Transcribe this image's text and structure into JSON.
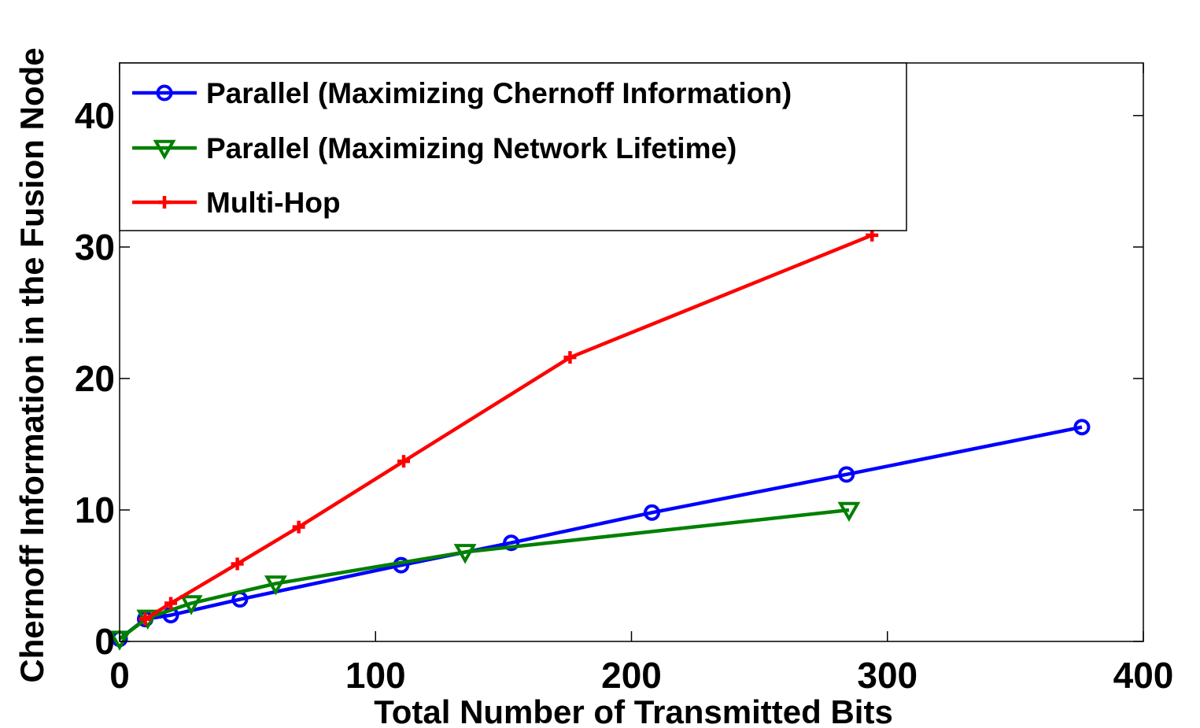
{
  "chart_data": {
    "type": "line",
    "title": "",
    "xlabel": "Total Number of Transmitted Bits",
    "ylabel": "Chernoff Information in the Fusion Node",
    "xlim": [
      0,
      400
    ],
    "ylim": [
      0,
      44
    ],
    "xticks": [
      0,
      100,
      200,
      300,
      400
    ],
    "yticks": [
      0,
      10,
      20,
      30,
      40
    ],
    "legend_position": "top-left",
    "series": [
      {
        "name": "Parallel (Maximizing Chernoff Information)",
        "color": "#0000ff",
        "marker": "circle",
        "x": [
          0,
          10,
          20,
          47,
          110,
          153,
          208,
          284,
          376
        ],
        "y": [
          0.2,
          1.7,
          2.0,
          3.2,
          5.8,
          7.5,
          9.8,
          12.7,
          16.3
        ]
      },
      {
        "name": "Parallel (Maximizing Network Lifetime)",
        "color": "#008000",
        "marker": "triangle-down",
        "x": [
          0,
          11,
          28,
          61,
          135,
          285
        ],
        "y": [
          0.2,
          1.8,
          2.9,
          4.4,
          6.8,
          10.0
        ]
      },
      {
        "name": "Multi-Hop",
        "color": "#ff0000",
        "marker": "plus",
        "x": [
          10,
          20,
          46,
          70,
          111,
          176,
          294
        ],
        "y": [
          1.7,
          2.9,
          5.9,
          8.7,
          13.7,
          21.6,
          30.9
        ]
      }
    ]
  }
}
